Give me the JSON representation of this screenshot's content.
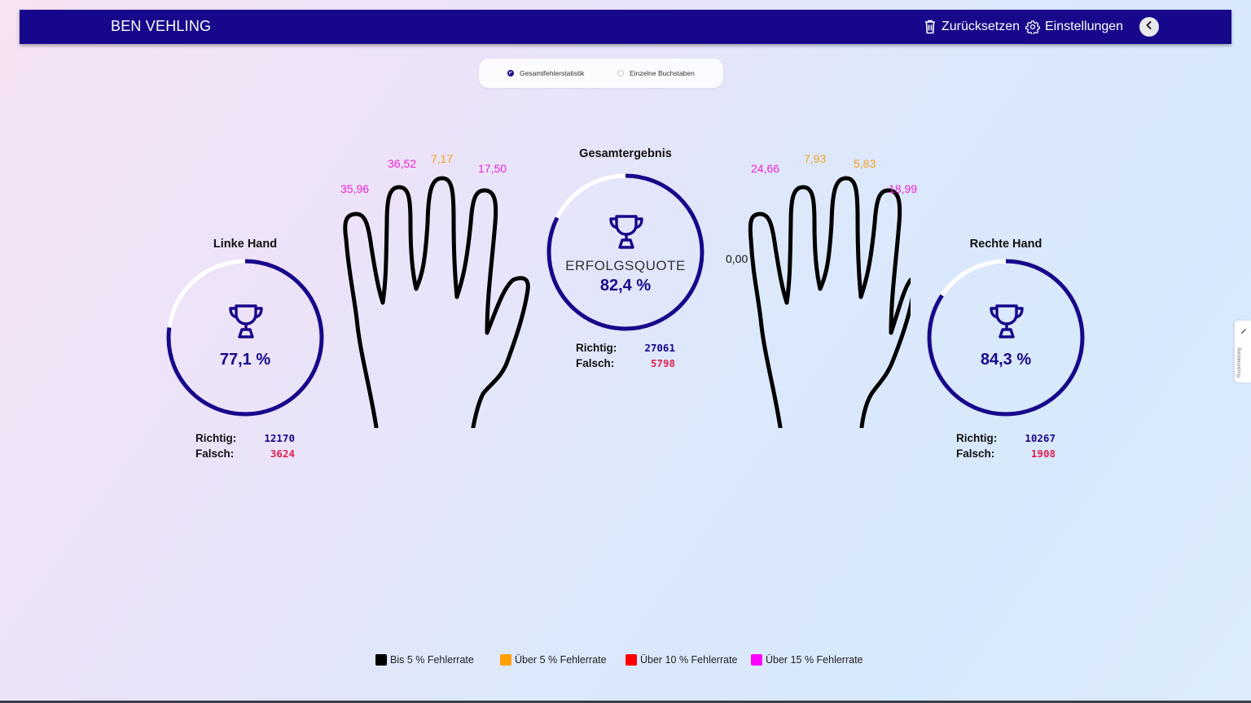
{
  "header": {
    "username": "BEN VEHLING",
    "reset_label": "Zurücksetzen",
    "settings_label": "Einstellungen",
    "colors": {
      "bar": "#17078a"
    }
  },
  "view_toggle": {
    "options": [
      {
        "label": "Gesamtfehlerstatistik",
        "selected": true
      },
      {
        "label": "Einzelne Buchstaben",
        "selected": false
      }
    ]
  },
  "left_hand": {
    "title": "Linke Hand",
    "success_rate": "77,1 %",
    "success_fraction": 0.771,
    "correct_label": "Richtig:",
    "correct": "12170",
    "wrong_label": "Falsch:",
    "wrong": "3624",
    "fingers": {
      "pinky": "35,96",
      "ring": "36,52",
      "middle": "7,17",
      "index": "17,50"
    }
  },
  "overall": {
    "title": "Gesamtergebnis",
    "label": "ERFOLGSQUOTE",
    "success_rate": "82,4 %",
    "success_fraction": 0.824,
    "correct_label": "Richtig:",
    "correct": "27061",
    "wrong_label": "Falsch:",
    "wrong": "5798"
  },
  "right_hand": {
    "title": "Rechte Hand",
    "success_rate": "84,3 %",
    "success_fraction": 0.843,
    "correct_label": "Richtig:",
    "correct": "10267",
    "wrong_label": "Falsch:",
    "wrong": "1908",
    "fingers": {
      "thumb": "0,00",
      "index": "24,66",
      "middle": "7,93",
      "ring": "5,83",
      "pinky": "18,99"
    }
  },
  "legend": [
    {
      "label": "Bis 5 % Fehlerrate",
      "color": "#000000"
    },
    {
      "label": "Über 5 % Fehlerrate",
      "color": "#ffa000"
    },
    {
      "label": "Über 10 % Fehlerrate",
      "color": "#ff0000"
    },
    {
      "label": "Über 15 % Fehlerrate",
      "color": "#ff00ff"
    }
  ],
  "feedback_tab": {
    "label": "Rückmeldung"
  }
}
